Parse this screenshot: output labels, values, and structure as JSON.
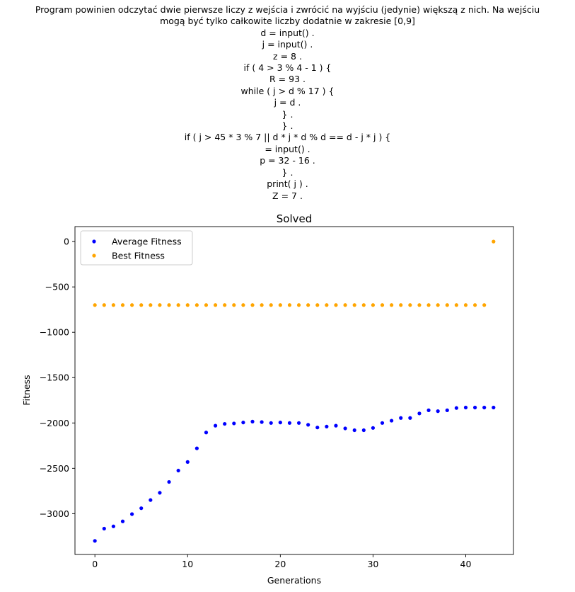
{
  "description_lines": [
    "Program powinien odczytać dwie pierwsze liczy z wejścia i zwrócić na wyjściu (jedynie) większą z nich. Na wejściu",
    "mogą być tylko całkowite liczby dodatnie w zakresie [0,9]",
    "d = input() .",
    "j = input() .",
    "z = 8 .",
    "if ( 4 > 3 % 4 - 1 ) {",
    "R = 93 .",
    "while ( j > d % 17 ) {",
    "j = d .",
    "} .",
    "} .",
    "if ( j > 45 * 3 % 7 || d * j * d % d == d - j * j ) {",
    "= input() .",
    "p = 32 - 16 .",
    "} .",
    "print( j ) .",
    "Z = 7 ."
  ],
  "chart_data": {
    "type": "scatter",
    "title": "Solved",
    "xlabel": "Generations",
    "ylabel": "Fitness",
    "xlim": [
      -2.15,
      45.15
    ],
    "ylim": [
      -3450,
      165
    ],
    "xticks": [
      0,
      10,
      20,
      30,
      40
    ],
    "yticks": [
      0,
      -500,
      -1000,
      -1500,
      -2000,
      -2500,
      -3000
    ],
    "grid": false,
    "legend_position": "top-left",
    "series": [
      {
        "name": "Average Fitness",
        "color": "#0000ff",
        "x": [
          0,
          1,
          2,
          3,
          4,
          5,
          6,
          7,
          8,
          9,
          10,
          11,
          12,
          13,
          14,
          15,
          16,
          17,
          18,
          19,
          20,
          21,
          22,
          23,
          24,
          25,
          26,
          27,
          28,
          29,
          30,
          31,
          32,
          33,
          34,
          35,
          36,
          37,
          38,
          39,
          40,
          41,
          42,
          43
        ],
        "y": [
          -3300,
          -3165,
          -3140,
          -3085,
          -3005,
          -2940,
          -2850,
          -2770,
          -2650,
          -2525,
          -2430,
          -2280,
          -2105,
          -2030,
          -2010,
          -2005,
          -1995,
          -1985,
          -1990,
          -2000,
          -1995,
          -2000,
          -2000,
          -2020,
          -2050,
          -2040,
          -2030,
          -2060,
          -2080,
          -2080,
          -2055,
          -2000,
          -1975,
          -1945,
          -1945,
          -1895,
          -1860,
          -1870,
          -1860,
          -1835,
          -1830,
          -1830,
          -1830,
          -1830
        ]
      },
      {
        "name": "Best Fitness",
        "color": "#ffa500",
        "x": [
          0,
          1,
          2,
          3,
          4,
          5,
          6,
          7,
          8,
          9,
          10,
          11,
          12,
          13,
          14,
          15,
          16,
          17,
          18,
          19,
          20,
          21,
          22,
          23,
          24,
          25,
          26,
          27,
          28,
          29,
          30,
          31,
          32,
          33,
          34,
          35,
          36,
          37,
          38,
          39,
          40,
          41,
          42,
          43
        ],
        "y": [
          -700,
          -700,
          -700,
          -700,
          -700,
          -700,
          -700,
          -700,
          -700,
          -700,
          -700,
          -700,
          -700,
          -700,
          -700,
          -700,
          -700,
          -700,
          -700,
          -700,
          -700,
          -700,
          -700,
          -700,
          -700,
          -700,
          -700,
          -700,
          -700,
          -700,
          -700,
          -700,
          -700,
          -700,
          -700,
          -700,
          -700,
          -700,
          -700,
          -700,
          -700,
          -700,
          -700,
          0
        ]
      }
    ]
  }
}
